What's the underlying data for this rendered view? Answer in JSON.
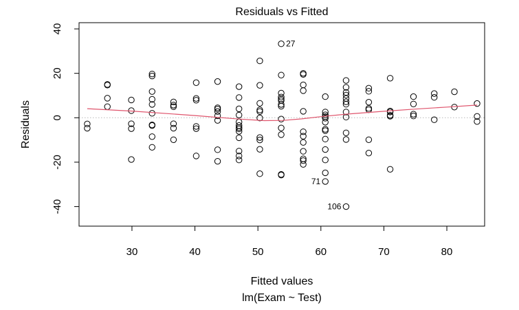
{
  "chart_data": {
    "type": "scatter",
    "title": "Residuals vs Fitted",
    "xlabel": "Fitted values",
    "xlabel2": "lm(Exam ~ Test)",
    "ylabel": "Residuals",
    "xlim": [
      21.6,
      86
    ],
    "ylim": [
      -48.8,
      42.8
    ],
    "xticks": [
      30,
      40,
      50,
      60,
      70,
      80
    ],
    "yticks": [
      -40,
      -20,
      0,
      20,
      40
    ],
    "smooth_color": "#DF536B",
    "zero_line_color": "#B8B8B8",
    "points": [
      [
        22.9,
        -2.8
      ],
      [
        22.9,
        -4.7
      ],
      [
        26.1,
        15
      ],
      [
        26.1,
        14.7
      ],
      [
        26.1,
        8.8
      ],
      [
        26.1,
        5
      ],
      [
        29.9,
        8
      ],
      [
        29.9,
        3.2
      ],
      [
        29.9,
        -2.7
      ],
      [
        29.9,
        -4.9
      ],
      [
        29.9,
        -18.8
      ],
      [
        33.2,
        19.7
      ],
      [
        33.2,
        18.8
      ],
      [
        33.2,
        11.8
      ],
      [
        33.2,
        8.3
      ],
      [
        33.2,
        6
      ],
      [
        33.2,
        2
      ],
      [
        33.2,
        -3.2
      ],
      [
        33.2,
        -3.5
      ],
      [
        33.2,
        -8.5
      ],
      [
        33.2,
        -13.3
      ],
      [
        36.6,
        7.1
      ],
      [
        36.6,
        5.7
      ],
      [
        36.6,
        5
      ],
      [
        36.6,
        -2.7
      ],
      [
        36.6,
        -4.7
      ],
      [
        36.6,
        -9.9
      ],
      [
        40.2,
        15.8
      ],
      [
        40.2,
        8.7
      ],
      [
        40.2,
        7.9
      ],
      [
        40.2,
        -3.9
      ],
      [
        40.2,
        -4.9
      ],
      [
        40.2,
        -17.2
      ],
      [
        43.6,
        16.3
      ],
      [
        43.6,
        4.5
      ],
      [
        43.6,
        3.9
      ],
      [
        43.6,
        2.8
      ],
      [
        43.6,
        0.9
      ],
      [
        43.6,
        -1.2
      ],
      [
        43.6,
        -14.4
      ],
      [
        43.6,
        -19.6
      ],
      [
        47,
        14
      ],
      [
        47,
        9.1
      ],
      [
        47,
        4
      ],
      [
        47,
        1.2
      ],
      [
        47,
        -1.9
      ],
      [
        47,
        -3.5
      ],
      [
        47,
        -4.4
      ],
      [
        47,
        -5
      ],
      [
        47,
        -6.1
      ],
      [
        47,
        -9
      ],
      [
        47,
        -15
      ],
      [
        47,
        -17.2
      ],
      [
        47,
        -19
      ],
      [
        50.3,
        25.6
      ],
      [
        50.3,
        14.6
      ],
      [
        50.3,
        6.5
      ],
      [
        50.3,
        3.5
      ],
      [
        50.3,
        2.8
      ],
      [
        50.3,
        -0.1
      ],
      [
        50.3,
        -8.9
      ],
      [
        50.3,
        -10
      ],
      [
        50.3,
        -14.2
      ],
      [
        50.3,
        -25.2
      ],
      [
        53.7,
        33.3
      ],
      [
        53.7,
        19.2
      ],
      [
        53.7,
        11.1
      ],
      [
        53.7,
        9.3
      ],
      [
        53.7,
        8.4
      ],
      [
        53.7,
        7.7
      ],
      [
        53.7,
        6
      ],
      [
        53.7,
        5.2
      ],
      [
        53.7,
        -0.6
      ],
      [
        53.7,
        -4.6
      ],
      [
        53.7,
        -7.6
      ],
      [
        53.7,
        -25.5
      ],
      [
        53.7,
        -25.8
      ],
      [
        57.2,
        20
      ],
      [
        57.2,
        19.5
      ],
      [
        57.2,
        14.8
      ],
      [
        57.2,
        12.2
      ],
      [
        57.2,
        2.9
      ],
      [
        57.2,
        -6.3
      ],
      [
        57.2,
        -8.3
      ],
      [
        57.2,
        -11.1
      ],
      [
        57.2,
        -15.1
      ],
      [
        57.2,
        -18.5
      ],
      [
        57.2,
        -19.3
      ],
      [
        57.2,
        -21
      ],
      [
        60.7,
        9.5
      ],
      [
        60.7,
        2.6
      ],
      [
        60.7,
        1.3
      ],
      [
        60.7,
        0.5
      ],
      [
        60.7,
        -0.2
      ],
      [
        60.7,
        -2
      ],
      [
        60.7,
        -5.2
      ],
      [
        60.7,
        -5.8
      ],
      [
        60.7,
        -9.6
      ],
      [
        60.7,
        -14.3
      ],
      [
        60.7,
        -19
      ],
      [
        60.7,
        -24.8
      ],
      [
        60.7,
        -28.7
      ],
      [
        64,
        16.8
      ],
      [
        64,
        13.7
      ],
      [
        64,
        11.4
      ],
      [
        64,
        10.2
      ],
      [
        64,
        8.7
      ],
      [
        64,
        7.2
      ],
      [
        64,
        6.1
      ],
      [
        64,
        2.6
      ],
      [
        64,
        0.3
      ],
      [
        64,
        -6.8
      ],
      [
        64,
        -9.8
      ],
      [
        64,
        -40
      ],
      [
        67.6,
        13.3
      ],
      [
        67.6,
        11.9
      ],
      [
        67.6,
        7
      ],
      [
        67.6,
        4.2
      ],
      [
        67.6,
        3.6
      ],
      [
        67.6,
        -9.9
      ],
      [
        67.6,
        -15.9
      ],
      [
        71,
        17.8
      ],
      [
        71,
        3
      ],
      [
        71,
        2.6
      ],
      [
        71,
        1.1
      ],
      [
        71,
        0.7
      ],
      [
        71,
        -23.2
      ],
      [
        74.7,
        9.5
      ],
      [
        74.7,
        6.2
      ],
      [
        74.7,
        1.6
      ],
      [
        74.7,
        0.8
      ],
      [
        78,
        10.9
      ],
      [
        78,
        9.2
      ],
      [
        78,
        -0.9
      ],
      [
        81.2,
        11.7
      ],
      [
        81.2,
        4.8
      ],
      [
        84.8,
        6.4
      ],
      [
        84.8,
        0.6
      ],
      [
        84.8,
        -1.7
      ]
    ],
    "labeled_points": [
      {
        "label": "27",
        "x": 53.7,
        "y": 33.3
      },
      {
        "label": "71",
        "x": 60.7,
        "y": -28.7
      },
      {
        "label": "106",
        "x": 64,
        "y": -40
      }
    ],
    "smooth_line": [
      [
        22.9,
        4.1
      ],
      [
        30,
        3.0
      ],
      [
        40,
        1.0
      ],
      [
        47,
        -0.6
      ],
      [
        51,
        -1.3
      ],
      [
        54,
        -1.2
      ],
      [
        57,
        -0.5
      ],
      [
        60,
        0.5
      ],
      [
        64,
        1.6
      ],
      [
        70,
        2.9
      ],
      [
        75,
        3.9
      ],
      [
        80,
        4.8
      ],
      [
        84.8,
        5.7
      ]
    ]
  }
}
